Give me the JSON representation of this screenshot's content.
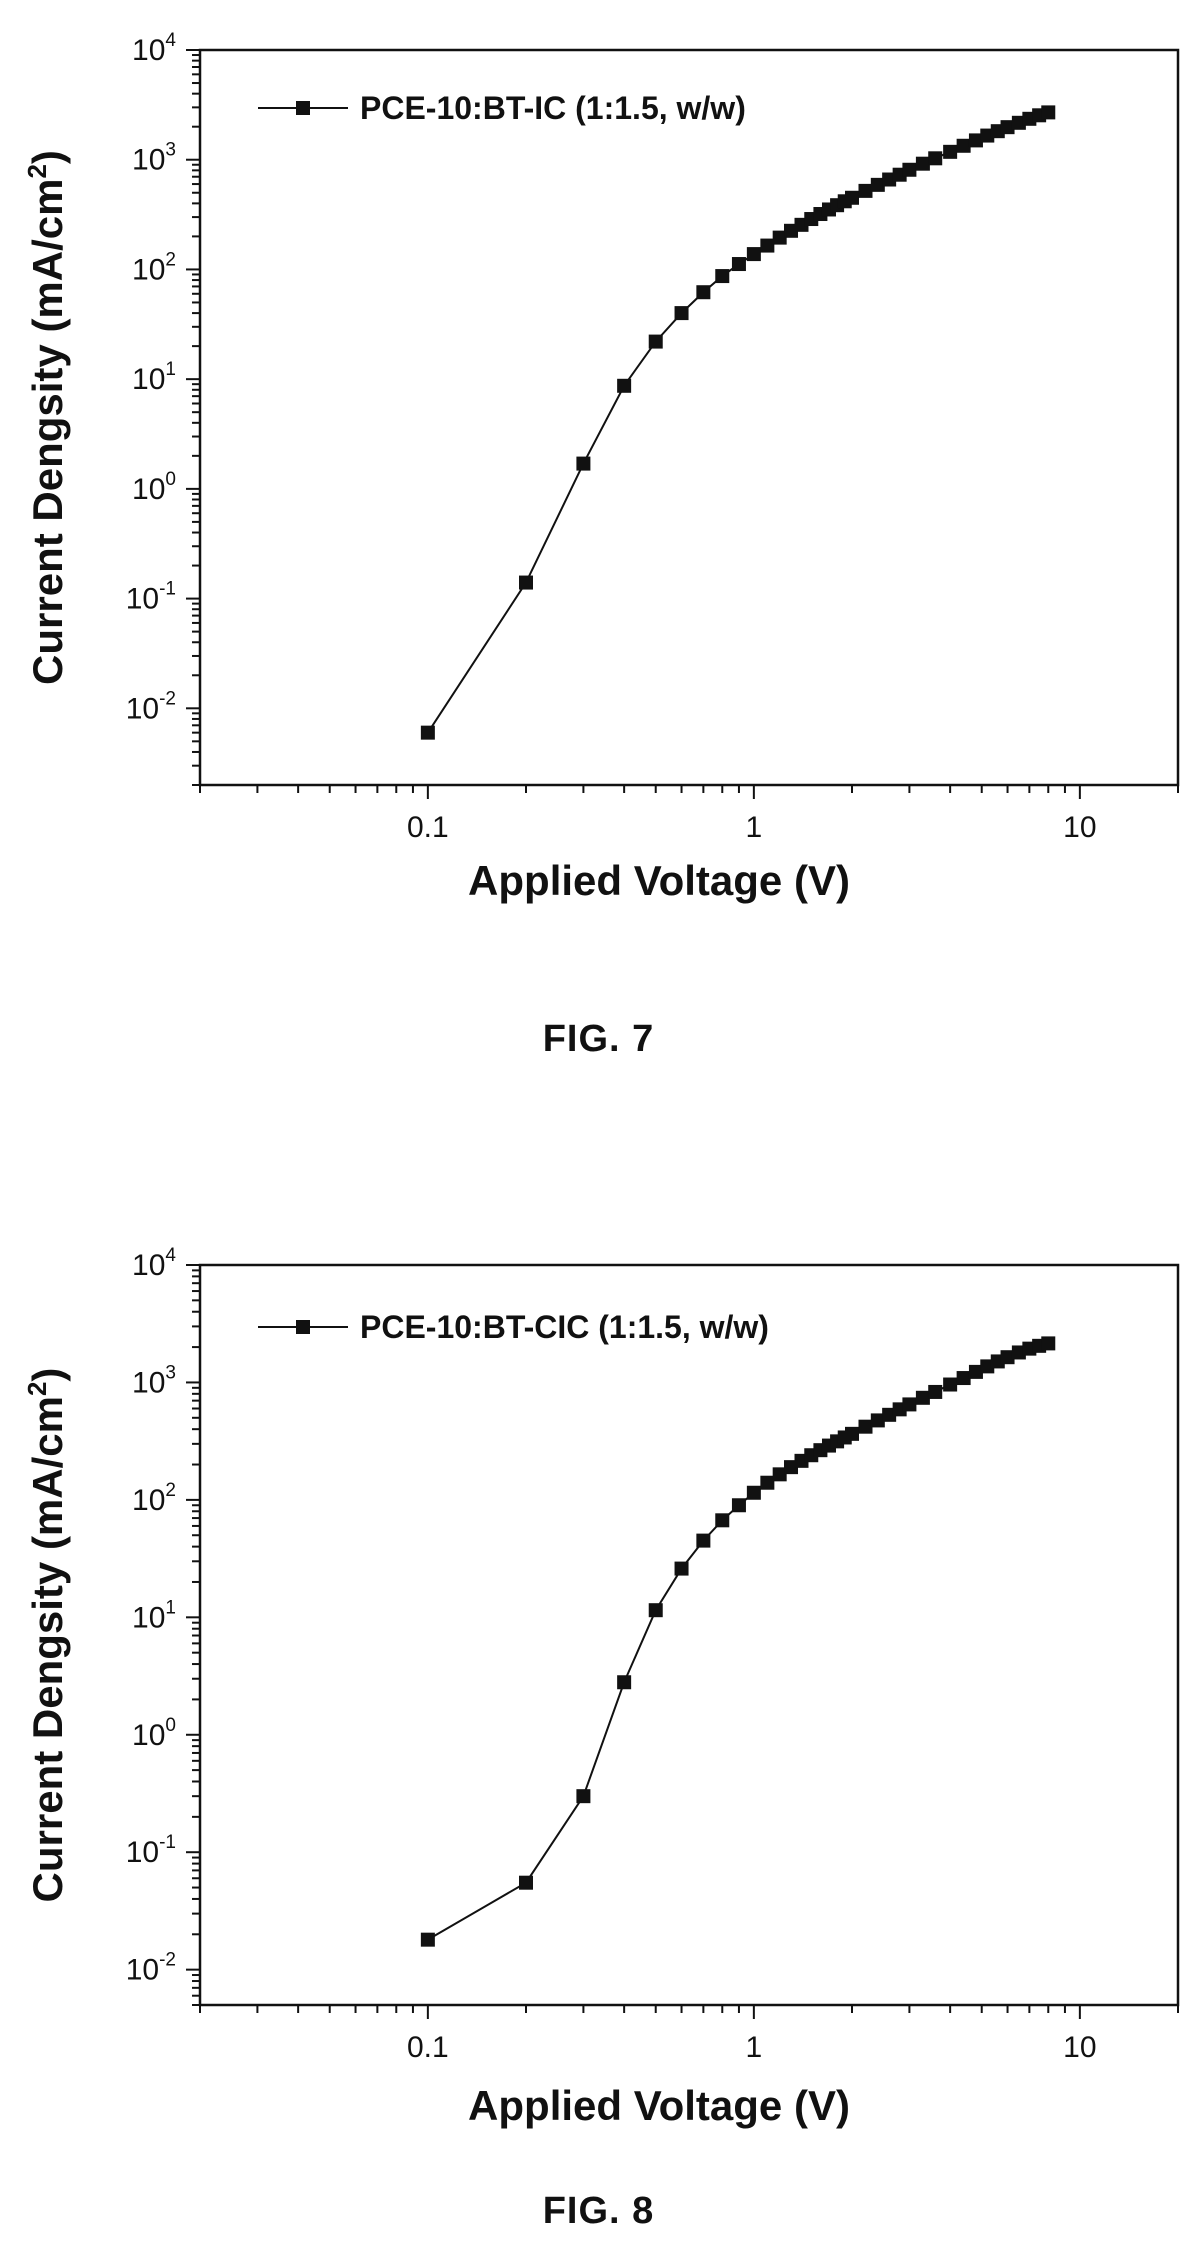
{
  "figures": [
    {
      "caption": "FIG. 7"
    },
    {
      "caption": "FIG. 8"
    }
  ],
  "chart_data": [
    {
      "type": "line",
      "xlabel": "Applied Voltage (V)",
      "ylabel_main": "Current Dengsity (mA/cm",
      "ylabel_sup": "2",
      "ylabel_tail": ")",
      "x_scale": "log",
      "y_scale": "log",
      "xlim": [
        0.02,
        20
      ],
      "ylim": [
        0.002,
        10000
      ],
      "x_ticks": [
        0.1,
        1,
        10
      ],
      "x_tick_labels": [
        "0.1",
        "1",
        "10"
      ],
      "y_ticks": [
        0.01,
        0.1,
        1,
        10,
        100,
        1000,
        10000
      ],
      "y_tick_labels": [
        {
          "base": "10",
          "exp": "-2"
        },
        {
          "base": "10",
          "exp": "-1"
        },
        {
          "base": "10",
          "exp": "0"
        },
        {
          "base": "10",
          "exp": "1"
        },
        {
          "base": "10",
          "exp": "2"
        },
        {
          "base": "10",
          "exp": "3"
        },
        {
          "base": "10",
          "exp": "4"
        }
      ],
      "legend_position": "top-left",
      "marker": "square",
      "series": [
        {
          "name": "PCE-10:BT-IC (1:1.5, w/w)",
          "x": [
            0.1,
            0.2,
            0.3,
            0.4,
            0.5,
            0.6,
            0.7,
            0.8,
            0.9,
            1.0,
            1.1,
            1.2,
            1.3,
            1.4,
            1.5,
            1.6,
            1.7,
            1.8,
            1.9,
            2.0,
            2.2,
            2.4,
            2.6,
            2.8,
            3.0,
            3.3,
            3.6,
            4.0,
            4.4,
            4.8,
            5.2,
            5.6,
            6.0,
            6.5,
            7.0,
            7.5,
            8.0
          ],
          "y": [
            0.006,
            0.14,
            1.7,
            8.7,
            22,
            40,
            62,
            87,
            112,
            138,
            165,
            195,
            225,
            255,
            288,
            320,
            352,
            385,
            418,
            450,
            520,
            590,
            660,
            730,
            810,
            920,
            1030,
            1180,
            1340,
            1500,
            1660,
            1820,
            1980,
            2170,
            2360,
            2540,
            2700
          ]
        }
      ]
    },
    {
      "type": "line",
      "xlabel": "Applied Voltage (V)",
      "ylabel_main": "Current Dengsity (mA/cm",
      "ylabel_sup": "2",
      "ylabel_tail": ")",
      "x_scale": "log",
      "y_scale": "log",
      "xlim": [
        0.02,
        20
      ],
      "ylim": [
        0.005,
        10000
      ],
      "x_ticks": [
        0.1,
        1,
        10
      ],
      "x_tick_labels": [
        "0.1",
        "1",
        "10"
      ],
      "y_ticks": [
        0.01,
        0.1,
        1,
        10,
        100,
        1000,
        10000
      ],
      "y_tick_labels": [
        {
          "base": "10",
          "exp": "-2"
        },
        {
          "base": "10",
          "exp": "-1"
        },
        {
          "base": "10",
          "exp": "0"
        },
        {
          "base": "10",
          "exp": "1"
        },
        {
          "base": "10",
          "exp": "2"
        },
        {
          "base": "10",
          "exp": "3"
        },
        {
          "base": "10",
          "exp": "4"
        }
      ],
      "legend_position": "top-left",
      "marker": "square",
      "series": [
        {
          "name": "PCE-10:BT-CIC (1:1.5, w/w)",
          "x": [
            0.1,
            0.2,
            0.3,
            0.4,
            0.5,
            0.6,
            0.7,
            0.8,
            0.9,
            1.0,
            1.1,
            1.2,
            1.3,
            1.4,
            1.5,
            1.6,
            1.7,
            1.8,
            1.9,
            2.0,
            2.2,
            2.4,
            2.6,
            2.8,
            3.0,
            3.3,
            3.6,
            4.0,
            4.4,
            4.8,
            5.2,
            5.6,
            6.0,
            6.5,
            7.0,
            7.5,
            8.0
          ],
          "y": [
            0.018,
            0.055,
            0.3,
            2.8,
            11.5,
            26,
            45,
            67,
            90,
            115,
            140,
            165,
            190,
            215,
            240,
            265,
            290,
            315,
            340,
            365,
            420,
            475,
            530,
            590,
            650,
            740,
            830,
            960,
            1090,
            1230,
            1370,
            1510,
            1640,
            1800,
            1940,
            2050,
            2150
          ]
        }
      ]
    }
  ]
}
